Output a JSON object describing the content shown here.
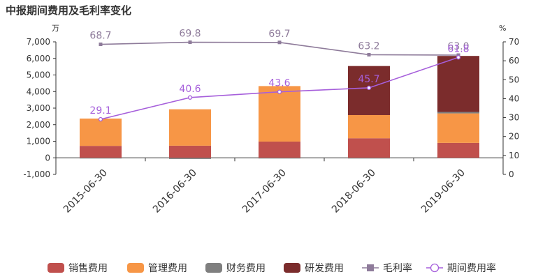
{
  "chart_data": {
    "type": "bar",
    "title": "中报期间费用及毛利率变化",
    "y_left_unit": "万",
    "y_right_unit": "%",
    "ylim_left": [
      -1000,
      7000
    ],
    "ylim_right": [
      0,
      70
    ],
    "left_ticks": [
      "7,000",
      "6,000",
      "5,000",
      "4,000",
      "3,000",
      "2,000",
      "1,000",
      "0",
      "-1,000"
    ],
    "right_ticks": [
      "70",
      "60",
      "50",
      "40",
      "30",
      "20",
      "10",
      "0"
    ],
    "categories": [
      "2015-06-30",
      "2016-06-30",
      "2017-06-30",
      "2018-06-30",
      "2019-06-30"
    ],
    "stacked_series": [
      {
        "name": "销售费用",
        "color": "#c0504d",
        "values": [
          720,
          730,
          980,
          1180,
          900
        ]
      },
      {
        "name": "管理费用",
        "color": "#f79646",
        "values": [
          1650,
          2200,
          3350,
          1400,
          1780
        ]
      },
      {
        "name": "财务费用",
        "color": "#7f7f7f",
        "values": [
          -40,
          -70,
          -10,
          -10,
          90
        ]
      },
      {
        "name": "研发费用",
        "color": "#7b2c2c",
        "values": [
          0,
          0,
          0,
          2960,
          3380
        ]
      }
    ],
    "line_series": [
      {
        "name": "毛利率",
        "color": "#8e7b9a",
        "marker": "square",
        "values": [
          68.7,
          69.8,
          69.7,
          63.2,
          63.0
        ]
      },
      {
        "name": "期间费用率",
        "color": "#a65fdb",
        "marker": "circle",
        "values": [
          29.1,
          40.6,
          43.6,
          45.7,
          61.8
        ]
      }
    ],
    "data_labels": {
      "毛利率": [
        "68.7",
        "69.8",
        "69.7",
        "63.2",
        "63.0"
      ],
      "期间费用率": [
        "29.1",
        "40.6",
        "43.6",
        "45.7",
        "61.8"
      ]
    },
    "legend": [
      "销售费用",
      "管理费用",
      "财务费用",
      "研发费用",
      "毛利率",
      "期间费用率"
    ],
    "legend_position": "bottom",
    "grid": false
  }
}
